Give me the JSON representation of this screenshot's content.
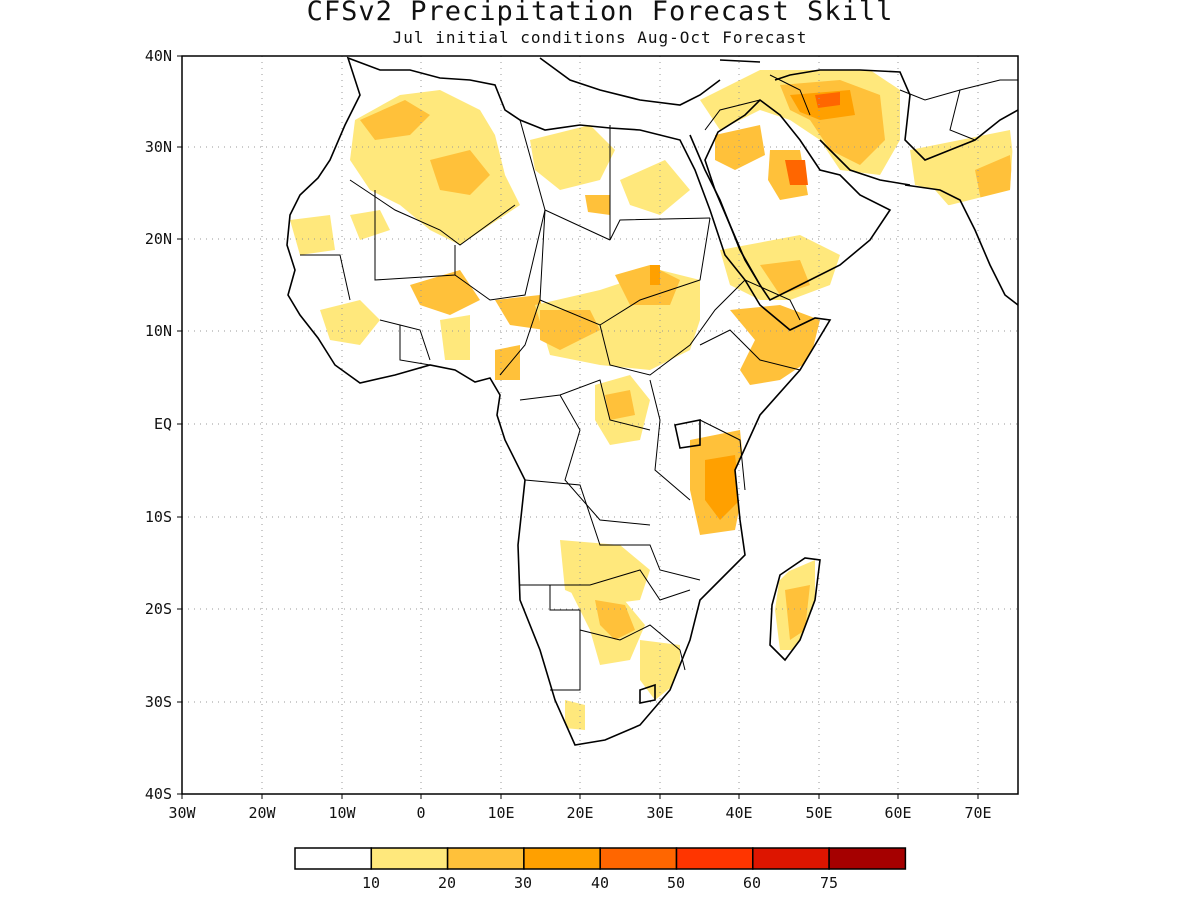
{
  "title": "CFSv2 Precipitation Forecast Skill",
  "subtitle": "Jul initial conditions   Aug-Oct Forecast",
  "map": {
    "lat_labels": [
      "40N",
      "30N",
      "20N",
      "10N",
      "EQ",
      "10S",
      "20S",
      "30S",
      "40S"
    ],
    "lon_labels": [
      "30W",
      "20W",
      "10W",
      "0",
      "10E",
      "20E",
      "30E",
      "40E",
      "50E",
      "60E",
      "70E"
    ],
    "extent": {
      "lon_min": -30,
      "lon_max": 75,
      "lat_min": -40,
      "lat_max": 40
    },
    "gridlines": "dotted"
  },
  "legend": {
    "labels": [
      "10",
      "20",
      "30",
      "40",
      "50",
      "60",
      "75"
    ],
    "colors": [
      "#ffffff",
      "#ffe87c",
      "#ffc13a",
      "#ffa000",
      "#ff6600",
      "#ff3500",
      "#dd1500",
      "#a50000"
    ]
  }
}
